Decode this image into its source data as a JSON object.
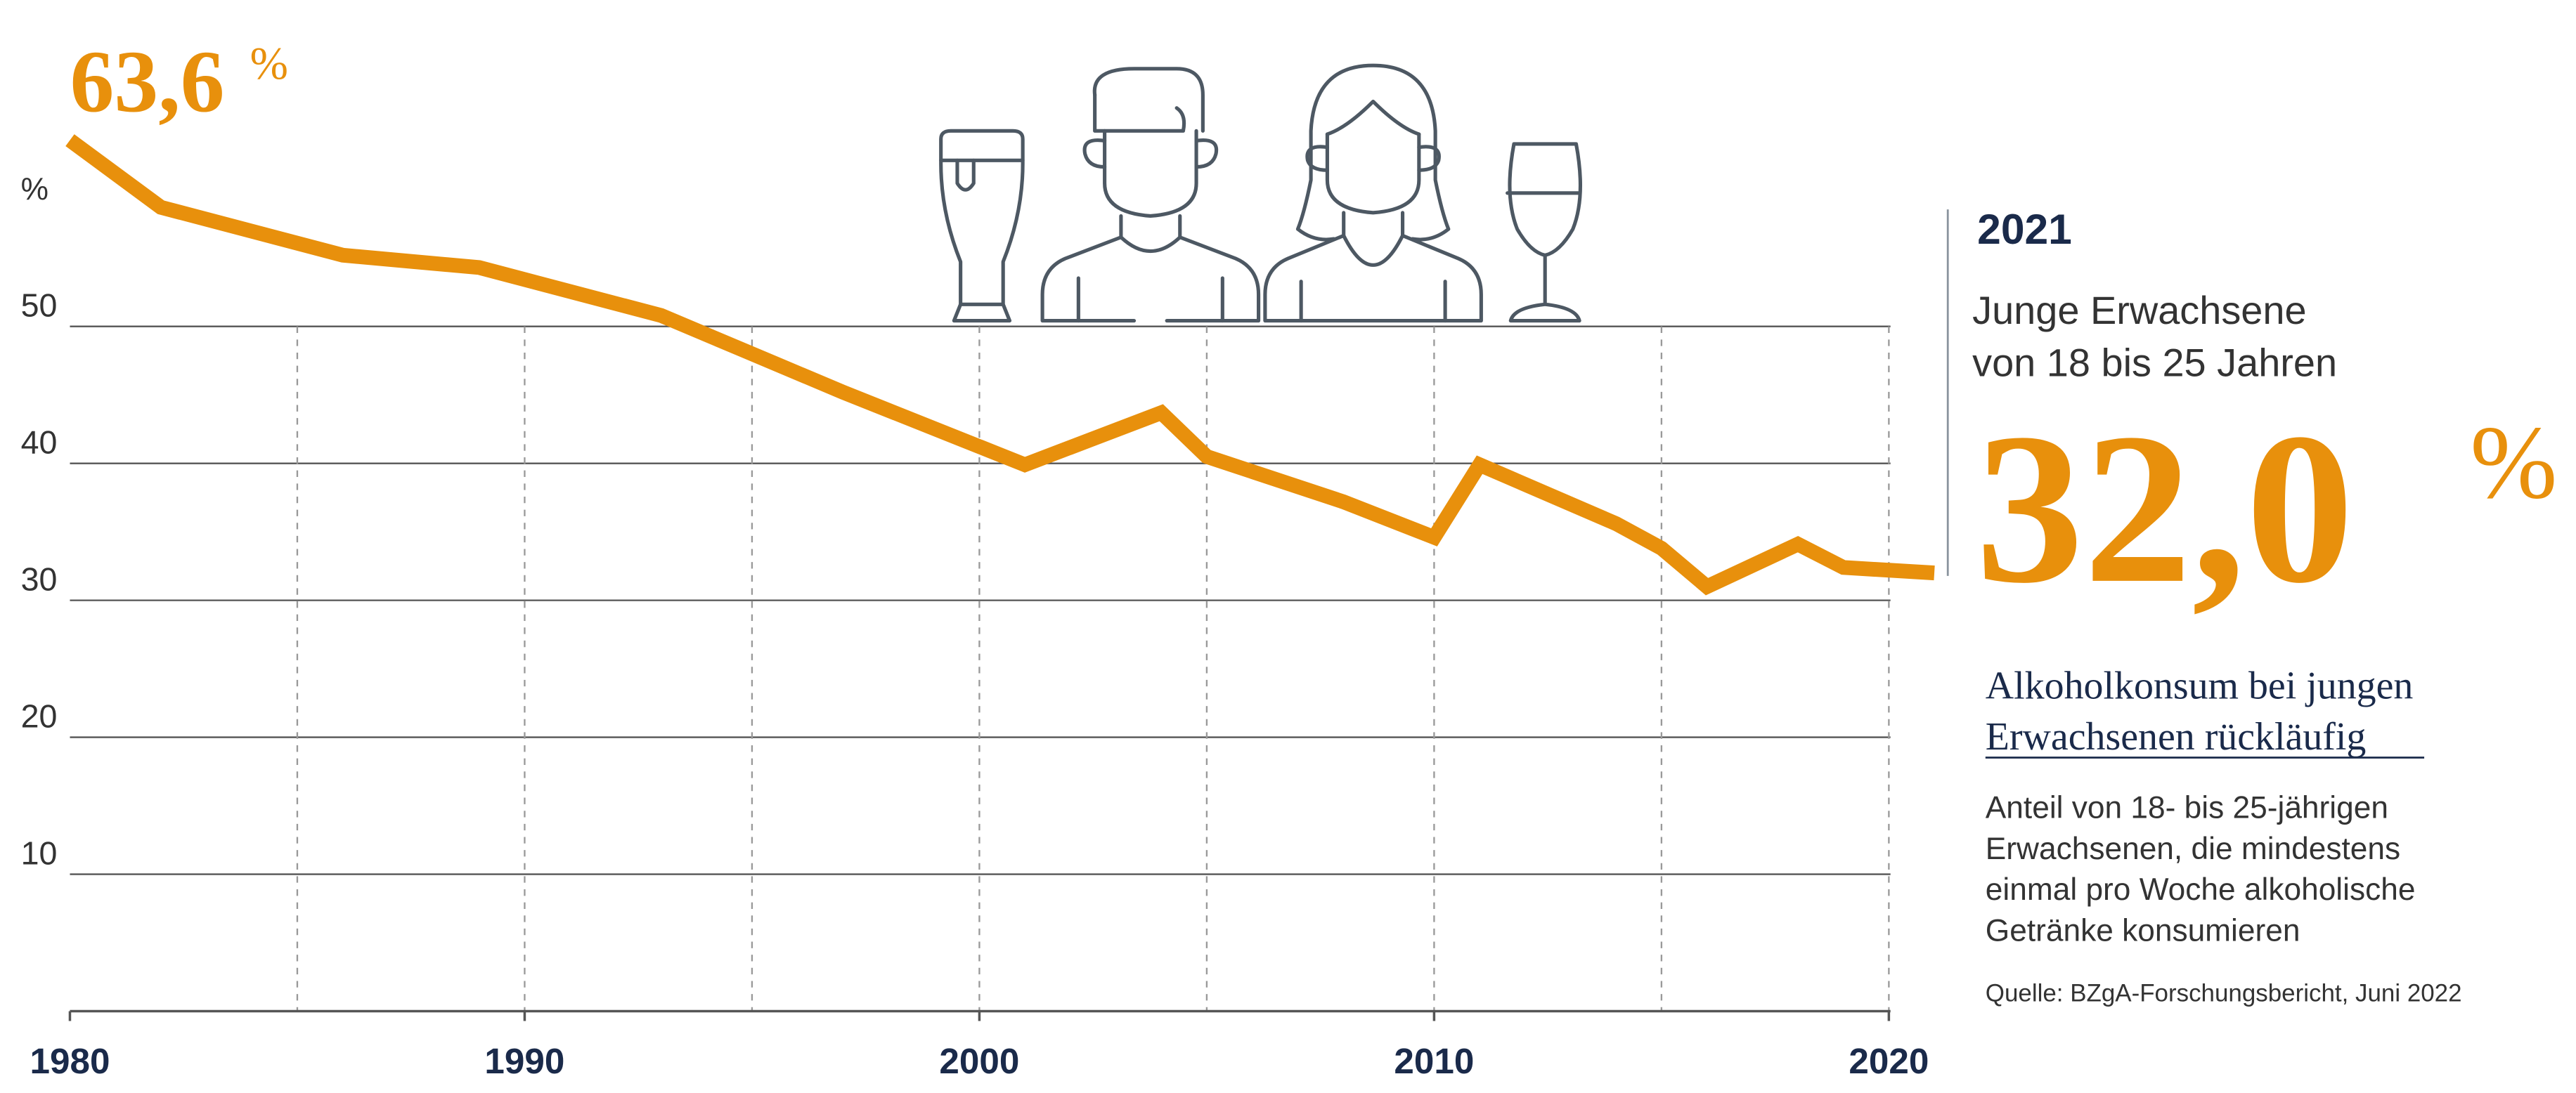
{
  "chart_data": {
    "type": "line",
    "start_label": {
      "number": "63,6",
      "unit": "%"
    },
    "y_label": "%",
    "x": [
      1980,
      1982,
      1986,
      1989,
      1993,
      1997,
      2001,
      2004,
      2005,
      2008,
      2010,
      2011,
      2014,
      2015,
      2016,
      2018,
      2019,
      2021
    ],
    "series": [
      {
        "color": "#e8900c",
        "values": [
          63.6,
          58.7,
          55.2,
          54.3,
          50.8,
          45.2,
          39.9,
          43.7,
          40.5,
          37.2,
          34.6,
          39.9,
          35.6,
          33.8,
          31.0,
          34.1,
          32.4,
          32.0
        ]
      }
    ],
    "xlim": [
      1980,
      2021
    ],
    "xticks": [
      1980,
      1990,
      2000,
      2010,
      2020
    ],
    "xgrid": [
      1985,
      1990,
      1995,
      2000,
      2005,
      2010,
      2015,
      2020
    ],
    "ylim": [
      0,
      70
    ],
    "yticks": [
      10,
      20,
      30,
      40,
      50
    ],
    "grid": true,
    "panel": {
      "year": "2021",
      "group": [
        "Junge Erwachsene",
        "von 18 bis 25 Jahren"
      ],
      "value": "32,0",
      "unit": "%",
      "heading": [
        "Alkoholkonsum bei jungen",
        "Erwachsenen rückläufig"
      ],
      "description": [
        "Anteil von 18- bis 25-jährigen",
        "Erwachsenen, die mindestens",
        "einmal pro Woche alkoholische",
        "Getränke konsumieren"
      ],
      "source": "Quelle: BZgA-Forschungsbericht, Juni 2022"
    }
  }
}
